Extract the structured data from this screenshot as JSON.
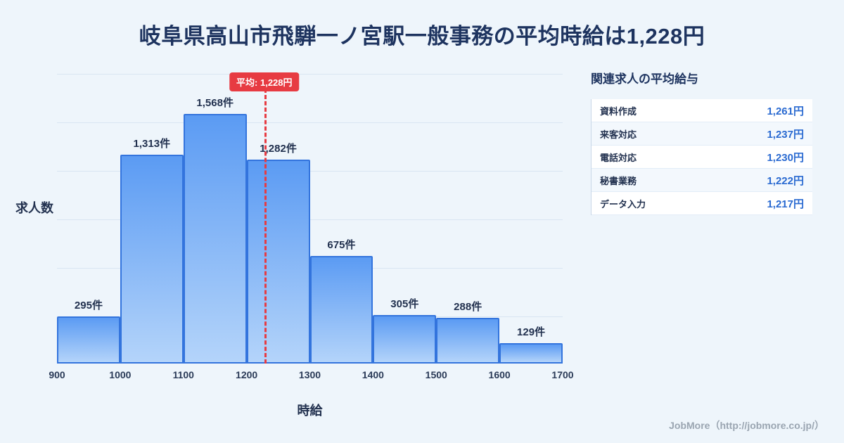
{
  "page": {
    "title": "岐阜県高山市飛騨一ノ宮駅一般事務の平均時給は1,228円",
    "footer": "JobMore（http://jobmore.co.jp/）"
  },
  "chart_data": {
    "type": "bar",
    "title": "岐阜県高山市飛騨一ノ宮駅一般事務の平均時給は1,228円",
    "xlabel": "時給",
    "ylabel": "求人数",
    "xlim": [
      900,
      1700
    ],
    "grid": true,
    "legend": "none",
    "bin_edges": [
      900,
      1000,
      1100,
      1200,
      1300,
      1400,
      1500,
      1600,
      1700
    ],
    "tick_labels": [
      "900",
      "1000",
      "1100",
      "1200",
      "1300",
      "1400",
      "1500",
      "1600",
      "1700"
    ],
    "values": [
      295,
      1313,
      1568,
      1282,
      675,
      305,
      288,
      129
    ],
    "value_labels": [
      "295件",
      "1,313件",
      "1,568件",
      "1,282件",
      "675件",
      "305件",
      "288件",
      "129件"
    ],
    "average_line": {
      "x": 1228,
      "label": "平均: 1,228円",
      "color": "#e73b42"
    },
    "colors": {
      "bar_top": "#5b9bf3",
      "bar_bottom": "#b4d4fa",
      "bar_border": "#3374dd",
      "gridline": "#d9e5f2",
      "label_text": "#22314f",
      "title_text": "#1d335f"
    }
  },
  "side_panel": {
    "title": "関連求人の平均給与",
    "rows": [
      {
        "label": "資料作成",
        "value": "1,261円"
      },
      {
        "label": "来客対応",
        "value": "1,237円"
      },
      {
        "label": "電話対応",
        "value": "1,230円"
      },
      {
        "label": "秘書業務",
        "value": "1,222円"
      },
      {
        "label": "データ入力",
        "value": "1,217円"
      }
    ]
  }
}
